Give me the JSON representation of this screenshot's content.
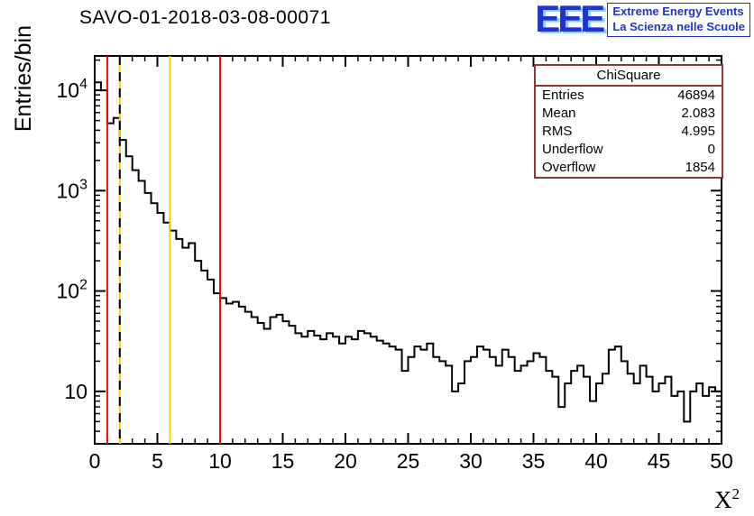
{
  "title": "SAVO-01-2018-03-08-00071",
  "logo": {
    "acronym": "EEE",
    "line1": "Extreme Energy Events",
    "line2": "La Scienza nelle Scuole",
    "color": "#2233cc"
  },
  "stats": {
    "title": "ChiSquare",
    "rows": [
      {
        "label": "Entries",
        "value": "46894"
      },
      {
        "label": "Mean",
        "value": "2.083"
      },
      {
        "label": "RMS",
        "value": "4.995"
      },
      {
        "label": "Underflow",
        "value": "0"
      },
      {
        "label": "Overflow",
        "value": "1854"
      }
    ]
  },
  "axes": {
    "y_label": "Entries/bin",
    "x_label_base": "X",
    "x_label_exp": "2"
  },
  "chart_data": {
    "type": "bar",
    "subtype": "step-histogram",
    "title": "SAVO-01-2018-03-08-00071",
    "xlabel": "X^2",
    "ylabel": "Entries/bin",
    "yscale": "log",
    "xlim": [
      0,
      50
    ],
    "ylim": [
      3,
      22000
    ],
    "grid": false,
    "legend": "none",
    "bin_width": 0.5,
    "x_start": 0,
    "counts": [
      12000,
      10000,
      4700,
      5300,
      3200,
      2200,
      1600,
      1250,
      950,
      750,
      600,
      480,
      400,
      330,
      270,
      300,
      200,
      160,
      130,
      95,
      85,
      75,
      78,
      70,
      62,
      55,
      48,
      42,
      55,
      58,
      50,
      45,
      38,
      35,
      40,
      36,
      33,
      38,
      35,
      30,
      35,
      33,
      40,
      38,
      35,
      32,
      30,
      28,
      26,
      16,
      22,
      28,
      26,
      30,
      22,
      20,
      18,
      10,
      12,
      20,
      22,
      28,
      26,
      22,
      18,
      26,
      22,
      16,
      18,
      20,
      24,
      22,
      16,
      14,
      7,
      12,
      16,
      18,
      14,
      8,
      12,
      15,
      26,
      28,
      20,
      15,
      12,
      18,
      14,
      10,
      12,
      14,
      9,
      10,
      5,
      10,
      12,
      9,
      11,
      10
    ],
    "x_ticks": [
      0,
      5,
      10,
      15,
      20,
      25,
      30,
      35,
      40,
      45,
      50
    ],
    "y_tick_exponents": [
      1,
      2,
      3,
      4
    ],
    "line_color": "#000000",
    "vertical_lines": [
      {
        "x": 1,
        "color": "#ff0000",
        "style": "solid"
      },
      {
        "x": 2,
        "color": "#ffcc00",
        "style": "solid"
      },
      {
        "x": 2,
        "color": "#000000",
        "style": "dashed"
      },
      {
        "x": 6,
        "color": "#ffcc00",
        "style": "solid"
      },
      {
        "x": 10,
        "color": "#ff0000",
        "style": "solid"
      }
    ]
  }
}
